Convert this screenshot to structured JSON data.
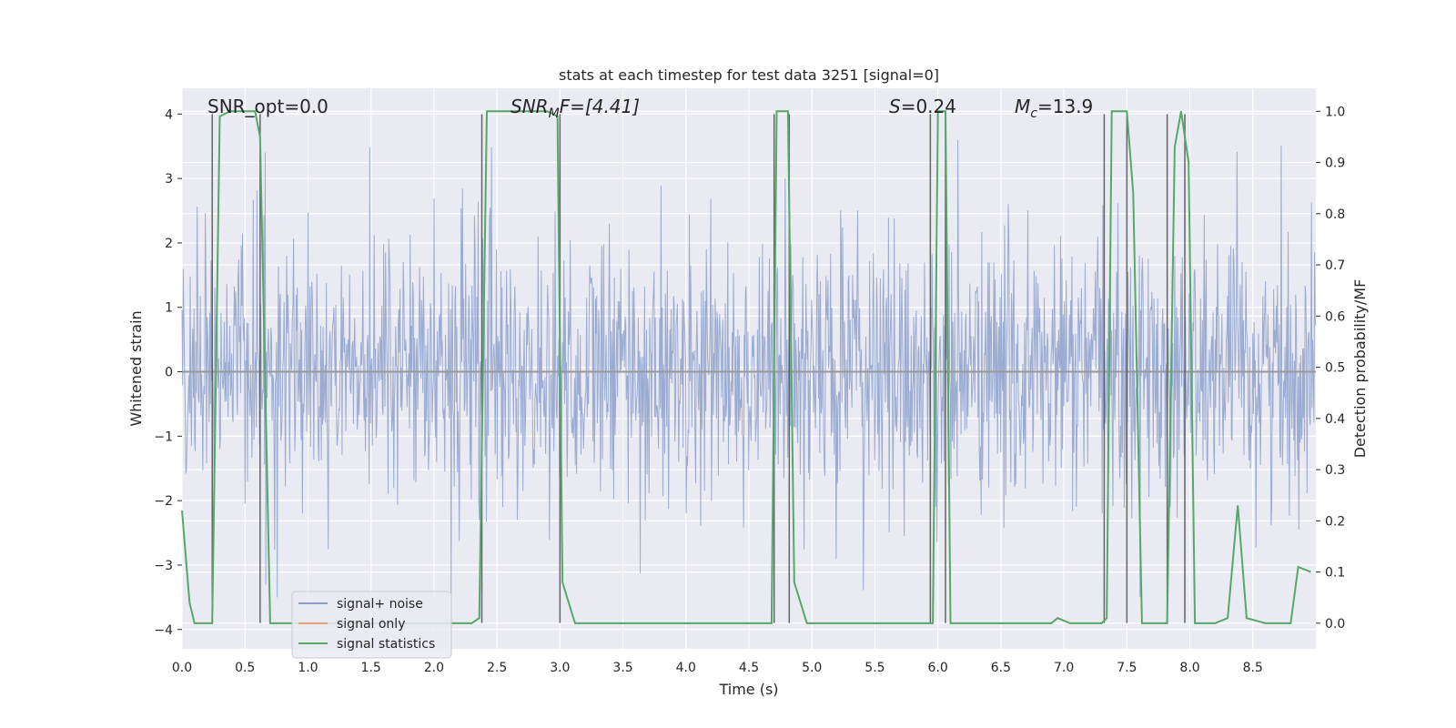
{
  "chart_data": {
    "type": "line",
    "title": "stats at each timestep for test data 3251 [signal=0]",
    "xlabel": "Time (s)",
    "ylabel": "Whitened strain",
    "ylabel_right": "Detection probability/MF",
    "xlim": [
      0.0,
      9.0
    ],
    "ylim": [
      -4.3,
      4.4
    ],
    "ylim_right": [
      -0.05,
      1.045
    ],
    "xticks": [
      "0.0",
      "0.5",
      "1.0",
      "1.5",
      "2.0",
      "2.5",
      "3.0",
      "3.5",
      "4.0",
      "4.5",
      "5.0",
      "5.5",
      "6.0",
      "6.5",
      "7.0",
      "7.5",
      "8.0",
      "8.5"
    ],
    "yticks_left": [
      "4",
      "3",
      "2",
      "1",
      "0",
      "−1",
      "−2",
      "−3",
      "−4"
    ],
    "yticks_right": [
      "1.0",
      "0.9",
      "0.8",
      "0.7",
      "0.6",
      "0.5",
      "0.4",
      "0.3",
      "0.2",
      "0.1",
      "0.0"
    ],
    "annotations": {
      "snr_opt": "SNR_opt=0.0",
      "snr_mf": "SNR",
      "snr_mf_sub": "M",
      "snr_mf_rest": "F=[4.41]",
      "s_label": "S",
      "s_value": "=0.24",
      "mc_label": "M",
      "mc_sub": "c",
      "mc_value": "=13.9"
    },
    "legend": {
      "placement": "lower-left",
      "entries": [
        "signal+ noise",
        "signal only",
        "signal statistics"
      ]
    },
    "series": [
      {
        "name": "signal+ noise",
        "color": "#8da0cb",
        "description": "dense whitened noise, envelope roughly -2.5 to 2.5 with spikes to about +/-3.5",
        "noise_envelope": [
          -2.5,
          2.5
        ]
      },
      {
        "name": "signal only",
        "color": "#e5a27b",
        "values_constant": 0.0
      },
      {
        "name": "signal statistics",
        "color": "#55a868",
        "x": [
          0.0,
          0.06,
          0.1,
          0.2,
          0.24,
          0.3,
          0.38,
          0.5,
          0.58,
          0.62,
          0.7,
          0.8,
          1.0,
          1.5,
          2.0,
          2.3,
          2.36,
          2.42,
          2.5,
          2.9,
          2.98,
          3.02,
          3.12,
          3.5,
          4.0,
          4.5,
          4.68,
          4.72,
          4.78,
          4.81,
          4.86,
          4.96,
          5.5,
          5.9,
          5.96,
          6.0,
          6.06,
          6.1,
          6.2,
          6.35,
          6.5,
          6.9,
          6.95,
          7.05,
          7.3,
          7.34,
          7.38,
          7.5,
          7.55,
          7.62,
          7.7,
          7.82,
          7.88,
          7.93,
          7.99,
          8.04,
          8.2,
          8.3,
          8.38,
          8.45,
          8.6,
          8.8,
          8.86,
          8.96
        ],
        "values": [
          0.22,
          0.04,
          0.0,
          0.0,
          0.0,
          0.99,
          1.0,
          1.0,
          1.0,
          0.95,
          0.0,
          0.0,
          0.0,
          0.0,
          0.0,
          0.0,
          0.01,
          1.0,
          1.0,
          1.0,
          0.99,
          0.08,
          0.0,
          0.0,
          0.0,
          0.0,
          0.0,
          1.0,
          1.0,
          1.0,
          0.08,
          0.0,
          0.0,
          0.0,
          0.0,
          1.0,
          1.0,
          0.0,
          0.0,
          0.0,
          0.0,
          0.0,
          0.01,
          0.0,
          0.0,
          0.01,
          1.0,
          1.0,
          0.84,
          0.0,
          0.0,
          0.0,
          0.93,
          1.0,
          0.9,
          0.0,
          0.0,
          0.01,
          0.23,
          0.01,
          0.0,
          0.0,
          0.11,
          0.1
        ]
      }
    ],
    "marker_lines_x": [
      0.24,
      0.62,
      2.38,
      3.0,
      4.7,
      4.82,
      5.94,
      6.06,
      7.32,
      7.5,
      7.82,
      7.96
    ]
  }
}
